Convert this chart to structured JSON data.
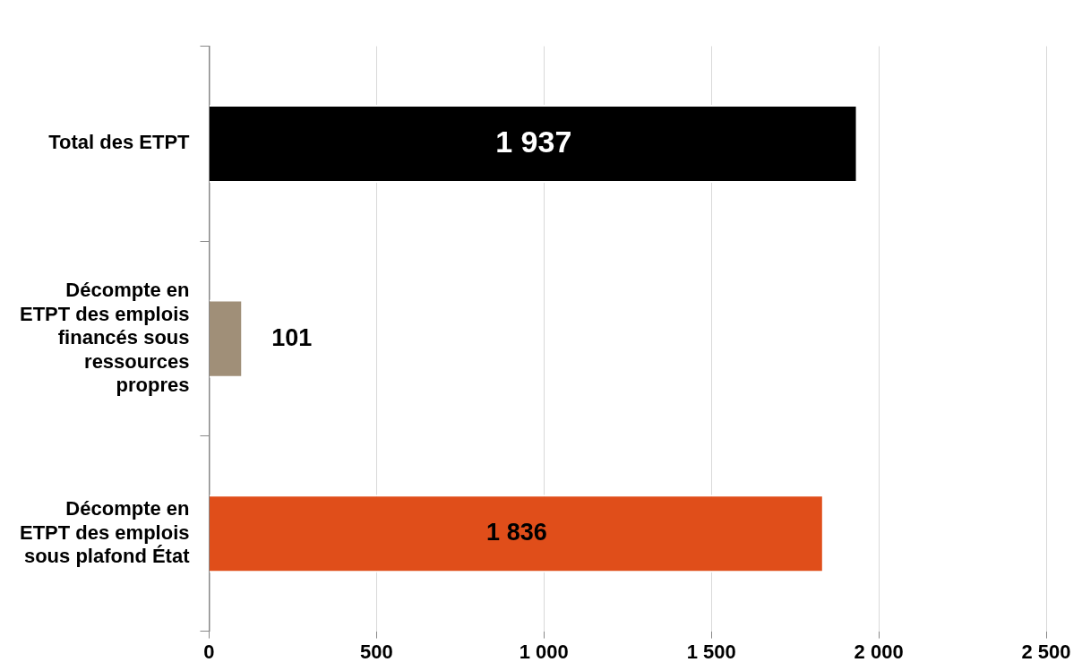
{
  "chart_data": {
    "type": "bar",
    "orientation": "horizontal",
    "categories": [
      "Total des ETPT",
      "Décompte en ETPT des emplois financés sous ressources propres",
      "Décompte en ETPT des emplois sous plafond État"
    ],
    "values": [
      1937,
      101,
      1836
    ],
    "colors": [
      "#000000",
      "#a08f78",
      "#e04e1a"
    ],
    "value_labels": [
      "1 937",
      "101",
      "1 836"
    ],
    "xlim": [
      0,
      2500
    ],
    "xticks": [
      0,
      500,
      {
        "value": 1000,
        "label": "1 000"
      },
      {
        "value": 1500,
        "label": "1 500"
      },
      {
        "value": 2000,
        "label": "2 000"
      },
      {
        "value": 2500,
        "label": "2 500"
      }
    ],
    "grid": "x",
    "legend": false
  }
}
